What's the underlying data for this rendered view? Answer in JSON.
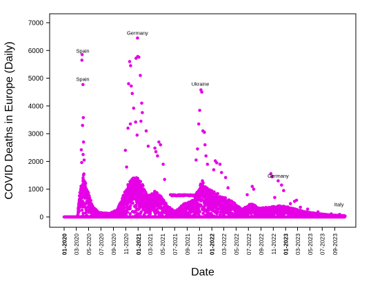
{
  "chart_data": {
    "type": "scatter",
    "title": "",
    "xlabel": "Date",
    "ylabel": "COVID Deaths in Europe (Daily)",
    "x_range": [
      "2020-01-01",
      "2023-10-31"
    ],
    "ylim": [
      -150,
      7100
    ],
    "y_ticks": [
      0,
      1000,
      2000,
      3000,
      4000,
      5000,
      6000,
      7000
    ],
    "x_ticks": [
      {
        "date": "2020-01-01",
        "label": "01-2020",
        "bold": true
      },
      {
        "date": "2020-03-01",
        "label": "03-2020",
        "bold": false
      },
      {
        "date": "2020-05-01",
        "label": "05-2020",
        "bold": false
      },
      {
        "date": "2020-07-01",
        "label": "07-2020",
        "bold": false
      },
      {
        "date": "2020-09-01",
        "label": "09-2020",
        "bold": false
      },
      {
        "date": "2020-11-01",
        "label": "11-2020",
        "bold": false
      },
      {
        "date": "2021-01-01",
        "label": "01-2021",
        "bold": true
      },
      {
        "date": "2021-03-01",
        "label": "03-2021",
        "bold": false
      },
      {
        "date": "2021-05-01",
        "label": "05-2021",
        "bold": false
      },
      {
        "date": "2021-07-01",
        "label": "07-2021",
        "bold": false
      },
      {
        "date": "2021-09-01",
        "label": "09-2021",
        "bold": false
      },
      {
        "date": "2021-11-01",
        "label": "11-2021",
        "bold": false
      },
      {
        "date": "2022-01-01",
        "label": "01-2022",
        "bold": true
      },
      {
        "date": "2022-03-01",
        "label": "03-2022",
        "bold": false
      },
      {
        "date": "2022-05-01",
        "label": "05-2022",
        "bold": false
      },
      {
        "date": "2022-07-01",
        "label": "07-2022",
        "bold": false
      },
      {
        "date": "2022-09-01",
        "label": "09-2022",
        "bold": false
      },
      {
        "date": "2022-11-01",
        "label": "11-2022",
        "bold": false
      },
      {
        "date": "2023-01-01",
        "label": "01-2023",
        "bold": true
      },
      {
        "date": "2023-03-01",
        "label": "03-2023",
        "bold": false
      },
      {
        "date": "2023-05-01",
        "label": "05-2023",
        "bold": false
      },
      {
        "date": "2023-07-01",
        "label": "07-2023",
        "bold": false
      },
      {
        "date": "2023-09-01",
        "label": "09-2023",
        "bold": false
      }
    ],
    "color": "#e600e6",
    "grid": false,
    "legend": "none",
    "annotations": [
      {
        "text": "Spain",
        "date": "2020-04-02",
        "value": 5800
      },
      {
        "text": "Spain",
        "date": "2020-04-02",
        "value": 4780
      },
      {
        "text": "Germany",
        "date": "2020-12-29",
        "value": 6440
      },
      {
        "text": "Ukraine",
        "date": "2021-11-05",
        "value": 4600
      },
      {
        "text": "Germany",
        "date": "2022-11-25",
        "value": 1290
      },
      {
        "text": "Italy",
        "date": "2023-09-22",
        "value": 260
      }
    ],
    "points": [
      {
        "date": "2020-03-30",
        "y": 5850
      },
      {
        "date": "2020-03-29",
        "y": 5650
      },
      {
        "date": "2020-04-03",
        "y": 4770
      },
      {
        "date": "2020-04-05",
        "y": 3580
      },
      {
        "date": "2020-04-01",
        "y": 3300
      },
      {
        "date": "2020-03-26",
        "y": 2420
      },
      {
        "date": "2020-04-06",
        "y": 2700
      },
      {
        "date": "2020-04-04",
        "y": 2250
      },
      {
        "date": "2020-04-08",
        "y": 1550
      },
      {
        "date": "2020-03-28",
        "y": 1960
      },
      {
        "date": "2020-04-09",
        "y": 2050
      },
      {
        "date": "2020-12-29",
        "y": 6450
      },
      {
        "date": "2020-12-30",
        "y": 5780
      },
      {
        "date": "2021-01-05",
        "y": 5760
      },
      {
        "date": "2020-12-22",
        "y": 5720
      },
      {
        "date": "2020-11-20",
        "y": 5600
      },
      {
        "date": "2020-11-25",
        "y": 5450
      },
      {
        "date": "2021-01-12",
        "y": 5100
      },
      {
        "date": "2020-11-15",
        "y": 4800
      },
      {
        "date": "2020-11-28",
        "y": 4720
      },
      {
        "date": "2020-12-03",
        "y": 4450
      },
      {
        "date": "2021-01-19",
        "y": 4100
      },
      {
        "date": "2020-12-10",
        "y": 3920
      },
      {
        "date": "2021-01-22",
        "y": 3760
      },
      {
        "date": "2020-11-24",
        "y": 3350
      },
      {
        "date": "2020-11-12",
        "y": 3200
      },
      {
        "date": "2020-12-20",
        "y": 3420
      },
      {
        "date": "2021-01-15",
        "y": 3450
      },
      {
        "date": "2021-02-10",
        "y": 3100
      },
      {
        "date": "2020-12-27",
        "y": 2950
      },
      {
        "date": "2021-02-20",
        "y": 2550
      },
      {
        "date": "2021-03-25",
        "y": 2480
      },
      {
        "date": "2021-04-14",
        "y": 2700
      },
      {
        "date": "2021-04-22",
        "y": 2600
      },
      {
        "date": "2021-04-07",
        "y": 2200
      },
      {
        "date": "2021-03-30",
        "y": 2350
      },
      {
        "date": "2021-05-05",
        "y": 1900
      },
      {
        "date": "2021-05-12",
        "y": 1350
      },
      {
        "date": "2020-10-30",
        "y": 2400
      },
      {
        "date": "2020-11-05",
        "y": 1800
      },
      {
        "date": "2021-11-08",
        "y": 4580
      },
      {
        "date": "2021-11-12",
        "y": 4500
      },
      {
        "date": "2021-11-02",
        "y": 3840
      },
      {
        "date": "2021-11-18",
        "y": 3100
      },
      {
        "date": "2021-11-25",
        "y": 3050
      },
      {
        "date": "2021-10-28",
        "y": 3350
      },
      {
        "date": "2021-11-28",
        "y": 2600
      },
      {
        "date": "2021-12-03",
        "y": 2200
      },
      {
        "date": "2021-10-22",
        "y": 2450
      },
      {
        "date": "2021-10-15",
        "y": 2050
      },
      {
        "date": "2021-12-10",
        "y": 1900
      },
      {
        "date": "2022-01-18",
        "y": 2020
      },
      {
        "date": "2022-01-25",
        "y": 1950
      },
      {
        "date": "2022-02-10",
        "y": 1900
      },
      {
        "date": "2022-02-18",
        "y": 1600
      },
      {
        "date": "2022-03-10",
        "y": 1420
      },
      {
        "date": "2022-03-22",
        "y": 1050
      },
      {
        "date": "2022-01-10",
        "y": 1700
      },
      {
        "date": "2022-07-20",
        "y": 1100
      },
      {
        "date": "2022-07-27",
        "y": 1000
      },
      {
        "date": "2022-06-25",
        "y": 800
      },
      {
        "date": "2022-10-20",
        "y": 1560
      },
      {
        "date": "2022-10-26",
        "y": 1450
      },
      {
        "date": "2022-11-25",
        "y": 1300
      },
      {
        "date": "2022-12-12",
        "y": 1150
      },
      {
        "date": "2022-12-22",
        "y": 950
      },
      {
        "date": "2022-11-08",
        "y": 700
      },
      {
        "date": "2023-02-14",
        "y": 560
      },
      {
        "date": "2023-02-24",
        "y": 600
      },
      {
        "date": "2023-01-25",
        "y": 480
      },
      {
        "date": "2023-03-15",
        "y": 350
      },
      {
        "date": "2023-04-20",
        "y": 280
      },
      {
        "date": "2023-06-10",
        "y": 180
      },
      {
        "date": "2023-08-15",
        "y": 110
      },
      {
        "date": "2023-09-25",
        "y": 90
      },
      {
        "date": "2023-10-10",
        "y": 40
      }
    ]
  }
}
